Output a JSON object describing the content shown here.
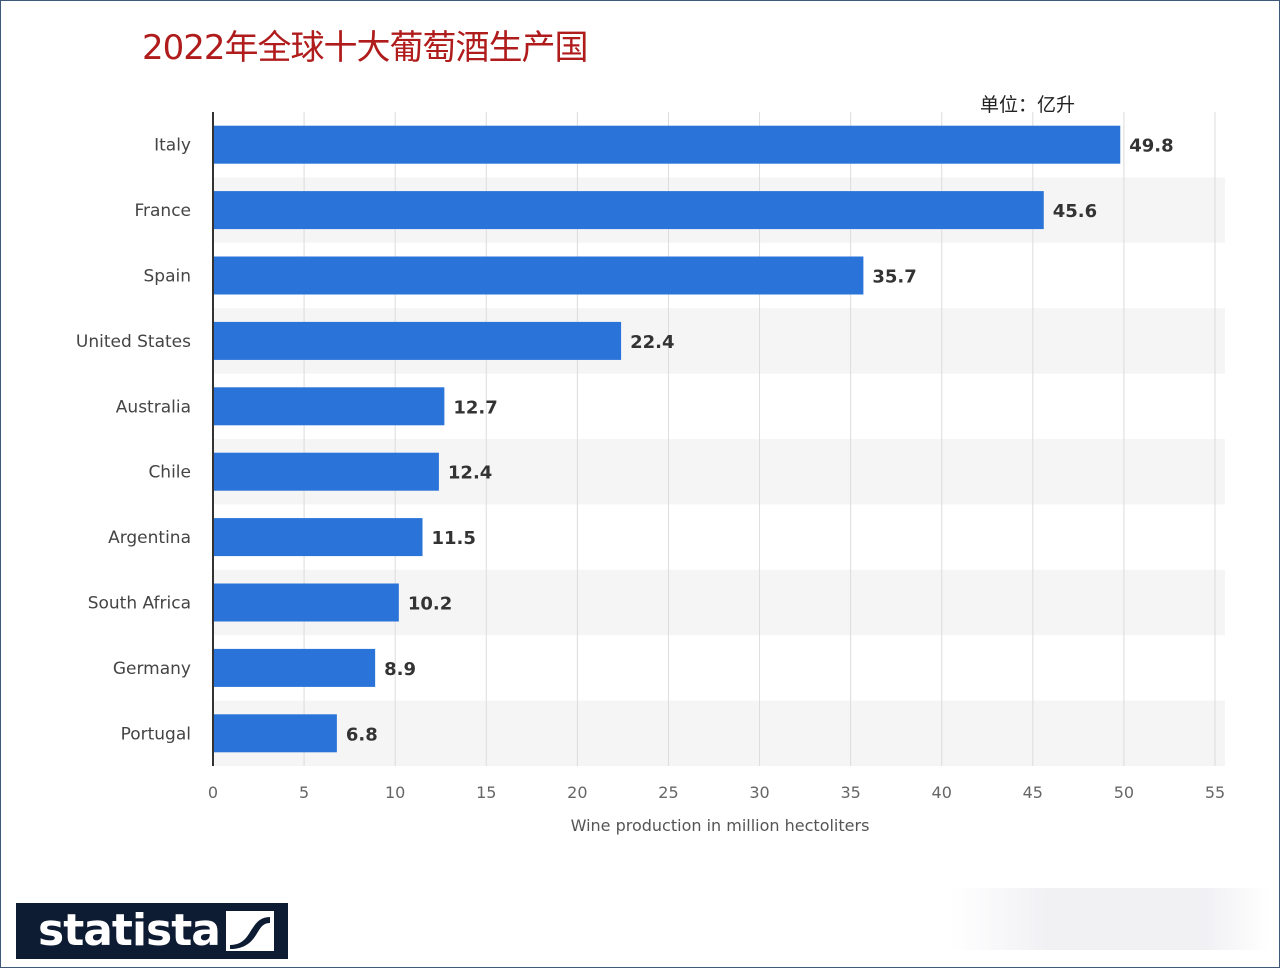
{
  "title": "2022年全球十大葡萄酒生产国",
  "unit_label": "单位：亿升",
  "logo_text": "statista",
  "colors": {
    "bar": "#2a74d9",
    "title": "#b01c1c",
    "band": "#f5f5f5",
    "grid": "#dcdcdc"
  },
  "chart_data": {
    "type": "bar",
    "orientation": "horizontal",
    "title": "2022年全球十大葡萄酒生产国",
    "categories": [
      "Italy",
      "France",
      "Spain",
      "United States",
      "Australia",
      "Chile",
      "Argentina",
      "South Africa",
      "Germany",
      "Portugal"
    ],
    "values": [
      49.8,
      45.6,
      35.7,
      22.4,
      12.7,
      12.4,
      11.5,
      10.2,
      8.9,
      6.8
    ],
    "value_labels": [
      "49.8",
      "45.6",
      "35.7",
      "22.4",
      "12.7",
      "12.4",
      "11.5",
      "10.2",
      "8.9",
      "6.8"
    ],
    "xlabel": "Wine production in million hectoliters",
    "ylabel": "",
    "xlim": [
      0,
      55
    ],
    "xticks": [
      "0",
      "5",
      "10",
      "15",
      "20",
      "25",
      "30",
      "35",
      "40",
      "45",
      "50",
      "55"
    ],
    "grid": true
  }
}
